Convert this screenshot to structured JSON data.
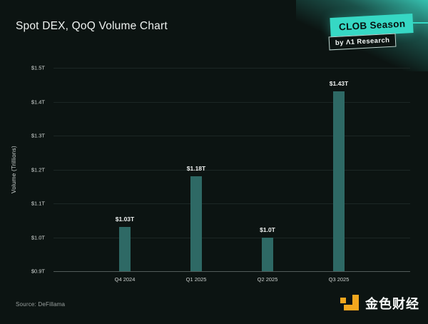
{
  "page": {
    "background": "#0c1412"
  },
  "header": {
    "title": "Spot DEX, QoQ Volume Chart"
  },
  "badge": {
    "primary": "CLOB Season",
    "secondary": "by Λ1 Research",
    "accent": "#36d8c4"
  },
  "chart_data": {
    "type": "bar",
    "title": "Spot DEX, QoQ Volume Chart",
    "categories": [
      "Q4 2024",
      "Q1 2025",
      "Q2 2025",
      "Q3 2025"
    ],
    "values": [
      1.03,
      1.18,
      1.0,
      1.43
    ],
    "value_labels": [
      "$1.03T",
      "$1.18T",
      "$1.0T",
      "$1.43T"
    ],
    "xlabel": "",
    "ylabel": "Volume (Trillions)",
    "yticks": [
      "$1.5T",
      "$1.4T",
      "$1.3T",
      "$1.2T",
      "$1.1T",
      "$1.0T",
      "$0.9T"
    ],
    "ylim": [
      0.9,
      1.5
    ],
    "grid": true,
    "legend": "none",
    "bar_color": "#2e6965"
  },
  "footer": {
    "source": "Source: DeFillama",
    "logo_text": "金色财经",
    "logo_color": "#f2a71e"
  }
}
